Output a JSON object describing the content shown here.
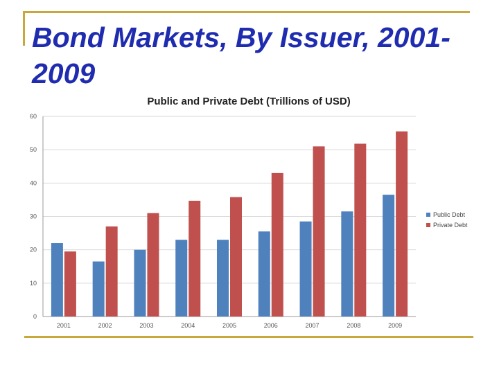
{
  "slide": {
    "title": "Bond Markets, By Issuer, 2001-2009"
  },
  "colors": {
    "title": "#1f2cb0",
    "rule": "#c8a83a",
    "public": "#4f81bd",
    "private": "#c0504d",
    "grid": "#d9d9d9"
  },
  "chart_data": {
    "type": "bar",
    "title": "Public and Private Debt (Trillions of USD)",
    "xlabel": "",
    "ylabel": "",
    "categories": [
      "2001",
      "2002",
      "2003",
      "2004",
      "2005",
      "2006",
      "2007",
      "2008",
      "2009"
    ],
    "ylim": [
      0,
      60
    ],
    "yticks": [
      0,
      10,
      20,
      30,
      40,
      50,
      60
    ],
    "grid": true,
    "legend": "right",
    "series": [
      {
        "name": "Public Debt",
        "color": "#4f81bd",
        "values": [
          22,
          16.5,
          20,
          23,
          23,
          25.5,
          28.5,
          31.5,
          36.5
        ]
      },
      {
        "name": "Private Debt",
        "color": "#c0504d",
        "values": [
          19.5,
          27,
          31,
          34.7,
          35.8,
          43,
          51,
          51.8,
          55.5
        ]
      }
    ]
  }
}
